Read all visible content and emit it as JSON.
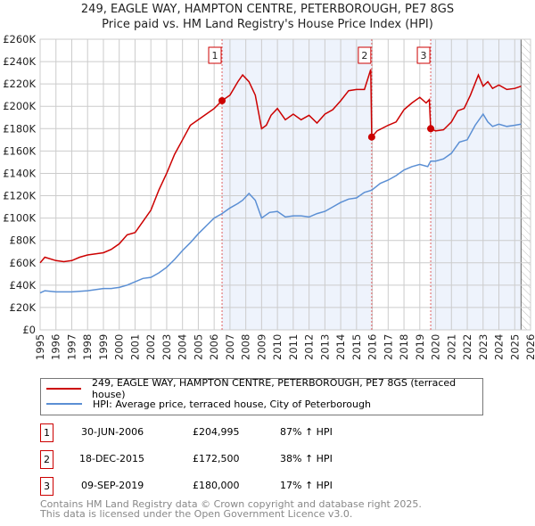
{
  "chart_data": {
    "type": "line",
    "title": "249, EAGLE WAY, HAMPTON CENTRE, PETERBOROUGH, PE7 8GS",
    "subtitle": "Price paid vs. HM Land Registry's House Price Index (HPI)",
    "xlim": [
      1995,
      2026
    ],
    "ylim": [
      0,
      260000
    ],
    "grid": true,
    "x_ticks": [
      "1995",
      "1996",
      "1997",
      "1998",
      "1999",
      "2000",
      "2001",
      "2002",
      "2003",
      "2004",
      "2005",
      "2006",
      "2007",
      "2008",
      "2009",
      "2010",
      "2011",
      "2012",
      "2013",
      "2014",
      "2015",
      "2016",
      "2017",
      "2018",
      "2019",
      "2020",
      "2021",
      "2022",
      "2023",
      "2024",
      "2025",
      "2026"
    ],
    "y_ticks": [
      "£0",
      "£20K",
      "£40K",
      "£60K",
      "£80K",
      "£100K",
      "£120K",
      "£140K",
      "£160K",
      "£180K",
      "£200K",
      "£220K",
      "£240K",
      "£260K"
    ],
    "forecast_start": 2025.4,
    "series": [
      {
        "name": "249, EAGLE WAY, HAMPTON CENTRE, PETERBOROUGH, PE7 8GS (terraced house)",
        "color": "#cc0000",
        "x": [
          1995,
          1995.3,
          1996,
          1996.5,
          1997,
          1997.5,
          1998,
          1998.5,
          1999,
          1999.5,
          2000,
          2000.5,
          2001,
          2001.5,
          2002,
          2002.5,
          2003,
          2003.5,
          2004,
          2004.5,
          2005,
          2005.5,
          2006,
          2006.5,
          2007,
          2007.5,
          2007.8,
          2008.2,
          2008.6,
          2009,
          2009.3,
          2009.6,
          2010,
          2010.5,
          2011,
          2011.5,
          2012,
          2012.5,
          2013,
          2013.5,
          2014,
          2014.5,
          2015,
          2015.5,
          2015.9,
          2015.96,
          2016.3,
          2017,
          2017.5,
          2018,
          2018.5,
          2019,
          2019.4,
          2019.6,
          2019.69,
          2020,
          2020.5,
          2021,
          2021.4,
          2021.8,
          2022.2,
          2022.7,
          2023,
          2023.3,
          2023.6,
          2024,
          2024.5,
          2025,
          2025.4
        ],
        "y": [
          60000,
          65000,
          62000,
          61000,
          62000,
          65000,
          67000,
          68000,
          69000,
          72000,
          77000,
          85000,
          87000,
          97000,
          107000,
          125000,
          140000,
          157000,
          170000,
          183000,
          188000,
          193000,
          198000,
          204995,
          210000,
          222000,
          228000,
          222000,
          210000,
          180000,
          183000,
          192000,
          198000,
          188000,
          193000,
          188000,
          192000,
          185000,
          193000,
          197000,
          205000,
          214000,
          215000,
          215000,
          233000,
          172500,
          178000,
          183000,
          186000,
          197000,
          203000,
          208000,
          203000,
          206000,
          180000,
          178000,
          179000,
          186000,
          196000,
          198000,
          210000,
          228000,
          218000,
          222000,
          216000,
          219000,
          215000,
          216000,
          218000
        ]
      },
      {
        "name": "HPI: Average price, terraced house, City of Peterborough",
        "color": "#5b8fd4",
        "x": [
          1995,
          1995.3,
          1996,
          1997,
          1998,
          1998.5,
          1999,
          1999.5,
          2000,
          2000.5,
          2001,
          2001.5,
          2002,
          2002.5,
          2003,
          2003.5,
          2004,
          2004.5,
          2005,
          2005.5,
          2006,
          2006.5,
          2007,
          2007.5,
          2007.8,
          2008.2,
          2008.6,
          2009,
          2009.5,
          2010,
          2010.5,
          2011,
          2011.5,
          2012,
          2012.5,
          2013,
          2013.5,
          2014,
          2014.5,
          2015,
          2015.5,
          2015.96,
          2016.5,
          2017,
          2017.5,
          2018,
          2018.5,
          2019,
          2019.5,
          2019.69,
          2020,
          2020.5,
          2021,
          2021.5,
          2022,
          2022.5,
          2023,
          2023.3,
          2023.6,
          2024,
          2024.5,
          2025,
          2025.4
        ],
        "y": [
          33000,
          35000,
          34000,
          34000,
          35000,
          36000,
          37000,
          37000,
          38000,
          40000,
          43000,
          46000,
          47000,
          51000,
          56000,
          63000,
          71000,
          78000,
          86000,
          93000,
          100000,
          104000,
          109000,
          113000,
          116000,
          122000,
          116000,
          100000,
          105000,
          106000,
          101000,
          102000,
          102000,
          101000,
          104000,
          106000,
          110000,
          114000,
          117000,
          118000,
          123000,
          125000,
          131000,
          134000,
          138000,
          143000,
          146000,
          148000,
          146000,
          151000,
          151000,
          153000,
          158000,
          168000,
          170000,
          183000,
          193000,
          186000,
          182000,
          184000,
          182000,
          183000,
          184000
        ]
      }
    ],
    "sales": [
      {
        "num": "1",
        "date": "30-JUN-2006",
        "x": 2006.5,
        "price": "£204,995",
        "value": 204995,
        "hpi": "87% ↑ HPI"
      },
      {
        "num": "2",
        "date": "18-DEC-2015",
        "x": 2015.96,
        "price": "£172,500",
        "value": 172500,
        "hpi": "38% ↑ HPI"
      },
      {
        "num": "3",
        "date": "09-SEP-2019",
        "x": 2019.69,
        "price": "£180,000",
        "value": 180000,
        "hpi": "17% ↑ HPI"
      }
    ]
  },
  "footer": {
    "line1": "Contains HM Land Registry data © Crown copyright and database right 2025.",
    "line2": "This data is licensed under the Open Government Licence v3.0."
  }
}
